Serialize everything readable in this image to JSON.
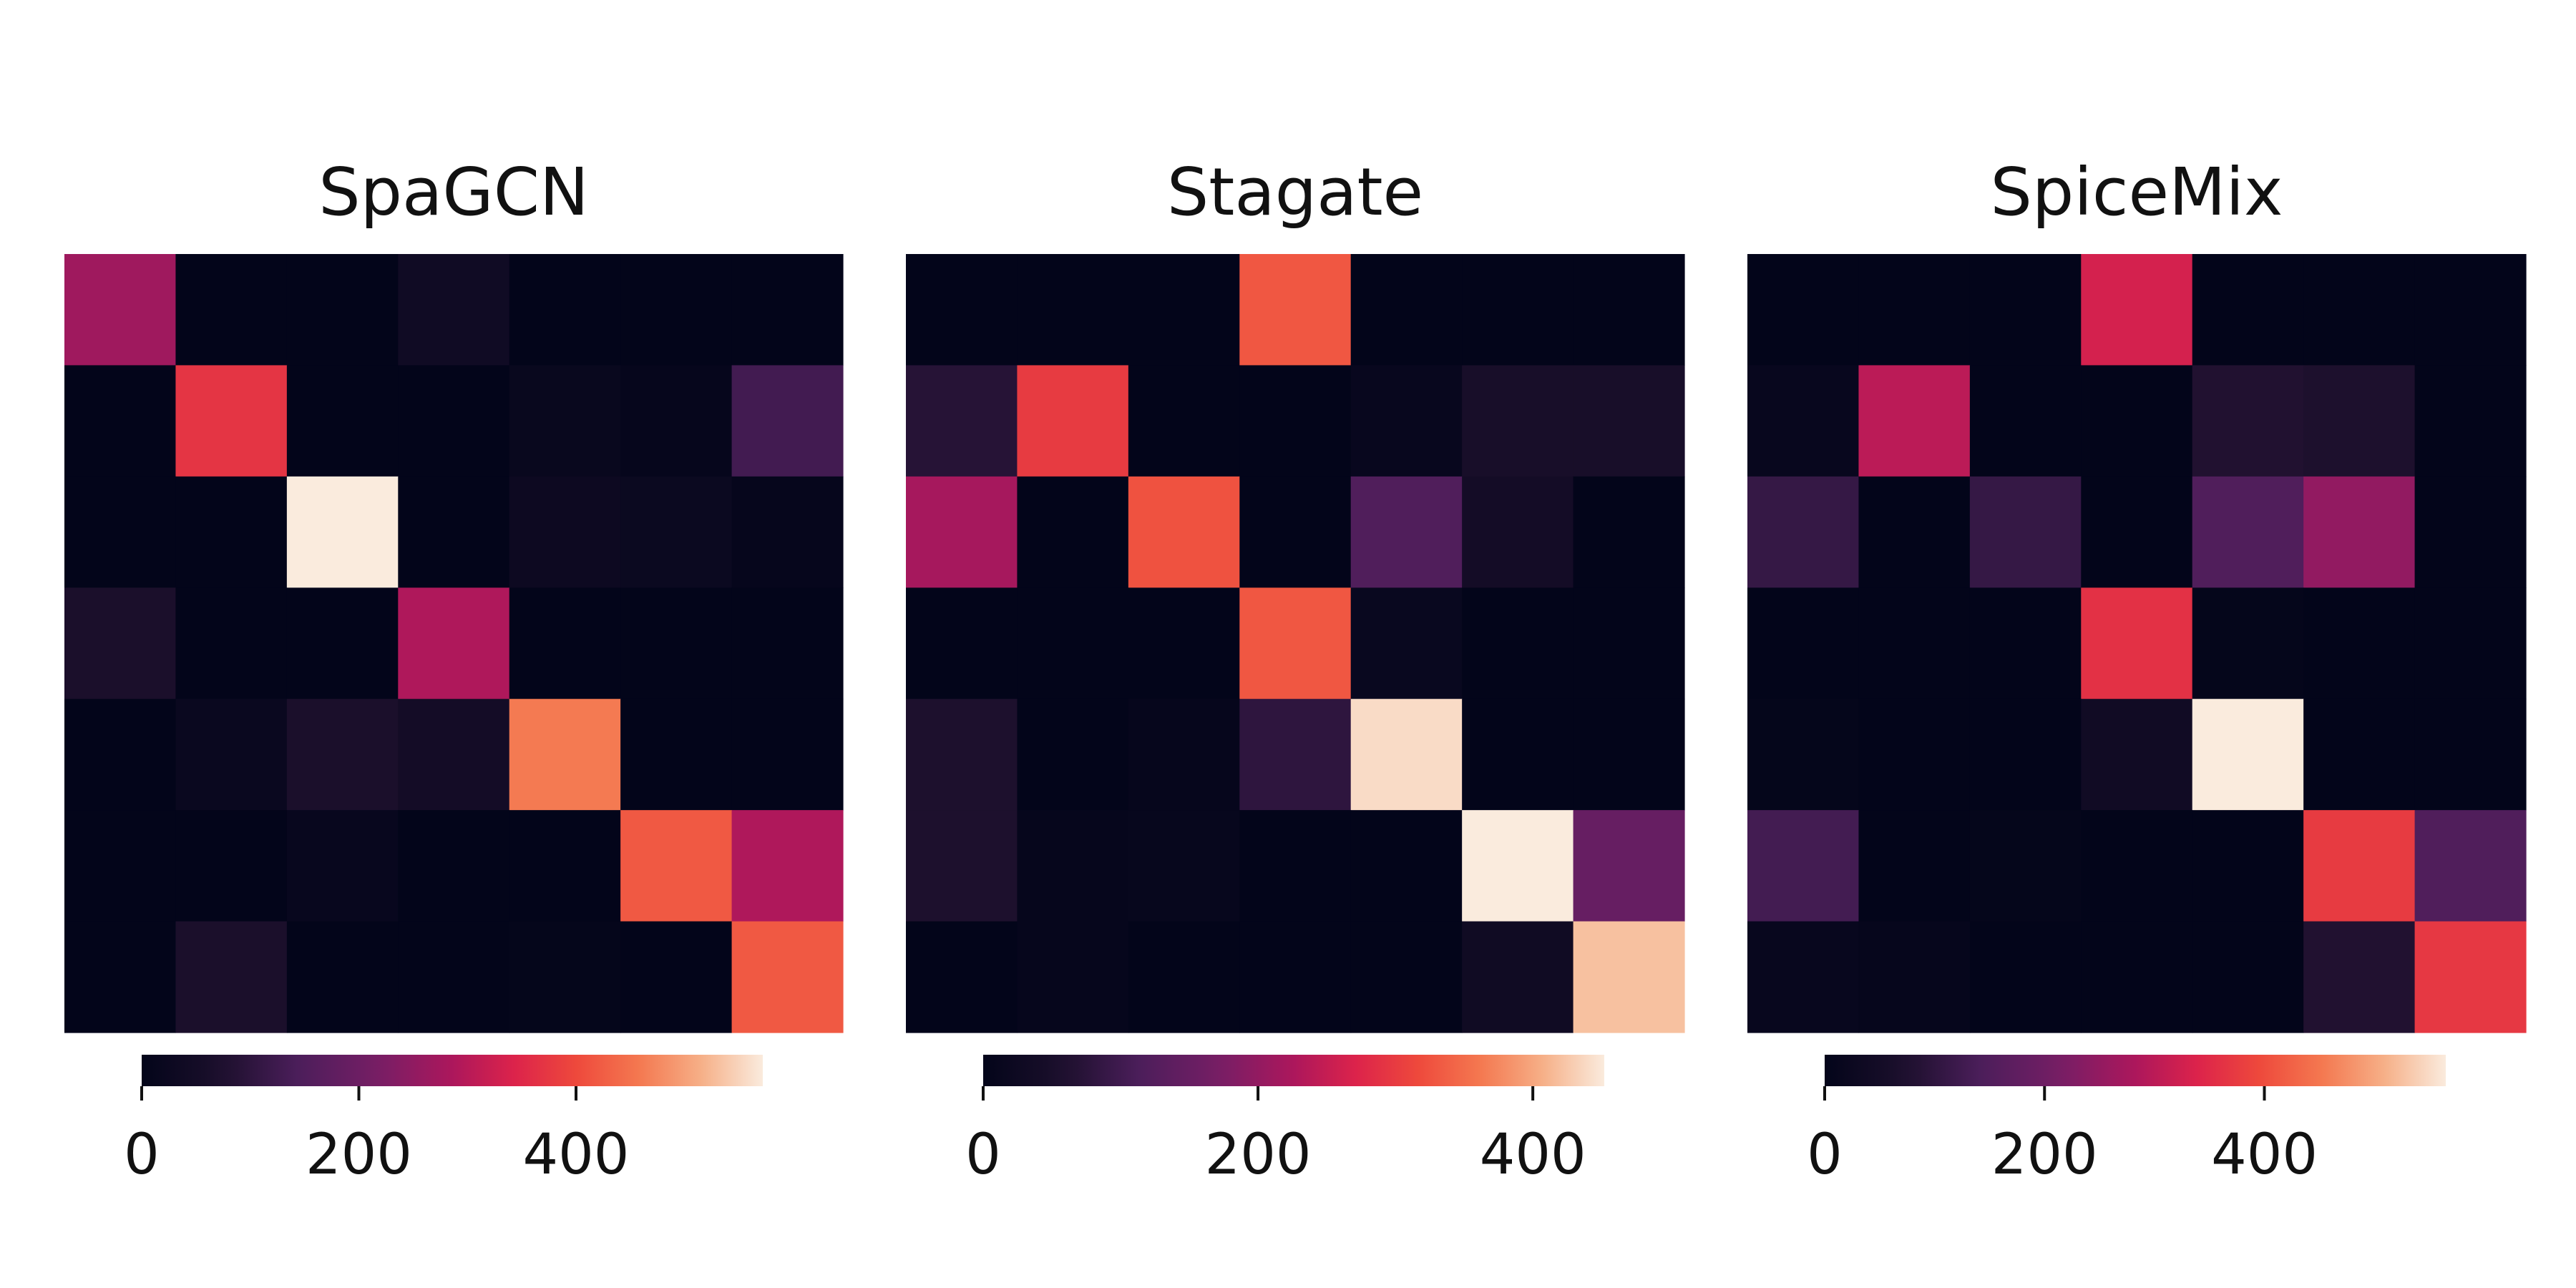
{
  "chart_data": [
    {
      "type": "heatmap",
      "title": "SpaGCN",
      "colorbar": {
        "min": 0,
        "max": 572,
        "ticks": [
          0,
          200,
          400
        ],
        "tick_labels": [
          "0",
          "200",
          "400"
        ]
      },
      "values": [
        [
          270,
          0,
          0,
          40,
          0,
          0,
          0
        ],
        [
          0,
          370,
          0,
          0,
          18,
          10,
          130
        ],
        [
          0,
          0,
          572,
          0,
          30,
          25,
          10
        ],
        [
          70,
          0,
          0,
          290,
          0,
          0,
          0
        ],
        [
          0,
          20,
          70,
          50,
          460,
          0,
          0
        ],
        [
          0,
          0,
          15,
          0,
          0,
          420,
          290
        ],
        [
          0,
          70,
          0,
          0,
          5,
          0,
          420
        ]
      ]
    },
    {
      "type": "heatmap",
      "title": "Stagate",
      "colorbar": {
        "min": 0,
        "max": 452,
        "ticks": [
          0,
          200,
          400
        ],
        "tick_labels": [
          "0",
          "200",
          "400"
        ]
      },
      "values": [
        [
          0,
          0,
          0,
          330,
          0,
          0,
          0
        ],
        [
          70,
          300,
          0,
          0,
          12,
          50,
          50
        ],
        [
          220,
          0,
          325,
          0,
          120,
          40,
          0
        ],
        [
          0,
          0,
          0,
          330,
          15,
          0,
          0
        ],
        [
          60,
          0,
          8,
          80,
          440,
          0,
          0
        ],
        [
          60,
          8,
          10,
          0,
          0,
          452,
          150
        ],
        [
          0,
          8,
          0,
          0,
          0,
          30,
          420
        ]
      ]
    },
    {
      "type": "heatmap",
      "title": "SpiceMix",
      "colorbar": {
        "min": 0,
        "max": 565,
        "ticks": [
          0,
          200,
          400
        ],
        "tick_labels": [
          "0",
          "200",
          "400"
        ]
      },
      "values": [
        [
          0,
          0,
          0,
          330,
          0,
          0,
          0
        ],
        [
          15,
          300,
          0,
          0,
          80,
          75,
          0
        ],
        [
          110,
          0,
          110,
          0,
          150,
          250,
          0
        ],
        [
          0,
          0,
          0,
          360,
          5,
          0,
          0
        ],
        [
          5,
          0,
          0,
          40,
          565,
          0,
          0
        ],
        [
          130,
          0,
          5,
          0,
          0,
          375,
          150
        ],
        [
          15,
          10,
          0,
          0,
          0,
          80,
          370
        ]
      ]
    }
  ]
}
